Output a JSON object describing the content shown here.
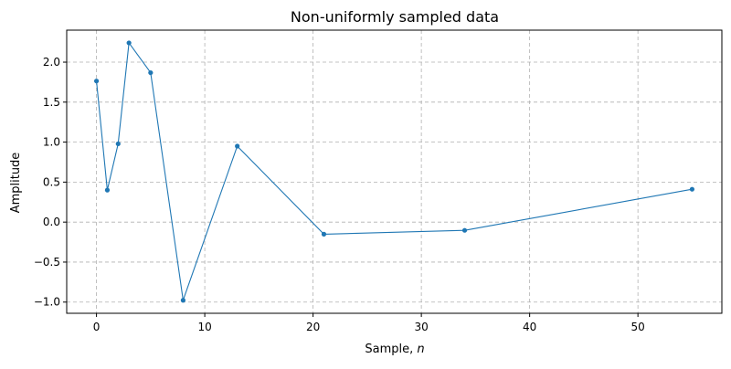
{
  "chart_data": {
    "type": "line",
    "title": "Non-uniformly sampled data",
    "xlabel": "Sample, n",
    "xlabel_prefix": "Sample, ",
    "xlabel_var": "n",
    "ylabel": "Amplitude",
    "xlim": [
      -2.75,
      57.75
    ],
    "ylim": [
      -1.14,
      2.4
    ],
    "xticks": [
      0,
      10,
      20,
      30,
      40,
      50
    ],
    "yticks": [
      -1.0,
      -0.5,
      0.0,
      0.5,
      1.0,
      1.5,
      2.0
    ],
    "ytick_labels": [
      "−1.0",
      "−0.5",
      "0.0",
      "0.5",
      "1.0",
      "1.5",
      "2.0"
    ],
    "grid": true,
    "line_color": "#1f77b4",
    "grid_color": "#b0b0b0",
    "series": [
      {
        "x": [
          0,
          1,
          2,
          3,
          5,
          8,
          13,
          21,
          34,
          55
        ],
        "values": [
          1.764,
          0.4,
          0.979,
          2.241,
          1.868,
          -0.977,
          0.95,
          -0.151,
          -0.103,
          0.411
        ]
      }
    ]
  }
}
